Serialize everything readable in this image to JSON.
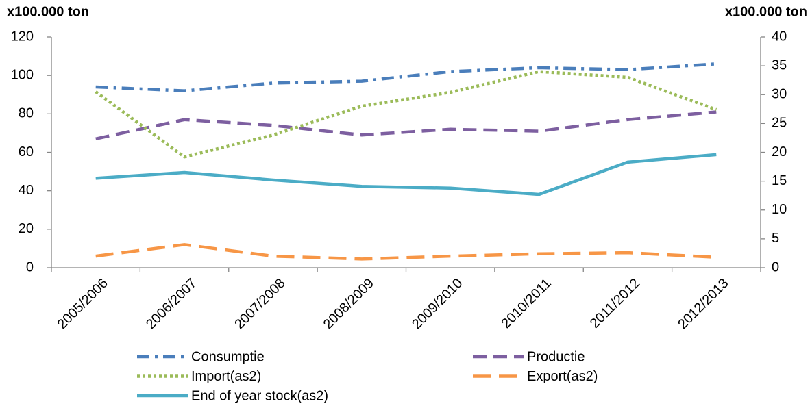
{
  "chart_data": {
    "type": "line",
    "y_label": "x100.000 ton",
    "y2_label": "x100.000 ton",
    "categories": [
      "2005/2006",
      "2006/2007",
      "2007/2008",
      "2008/2009",
      "2009/2010",
      "2010/2011",
      "2011/2012",
      "2012/2013"
    ],
    "ylim": [
      0,
      120
    ],
    "yticks": [
      0,
      20,
      40,
      60,
      80,
      100,
      120
    ],
    "y2lim": [
      0,
      40
    ],
    "y2ticks": [
      0,
      5,
      10,
      15,
      20,
      25,
      30,
      35,
      40
    ],
    "grid": false,
    "series": [
      {
        "name": "Consumptie",
        "color": "#4a7ebb",
        "dash": "dashdot",
        "values": [
          94,
          92,
          96,
          97,
          102,
          104,
          103,
          106
        ]
      },
      {
        "name": "Productie",
        "color": "#7d5fa0",
        "dash": "dash",
        "values": [
          67,
          77,
          74,
          69,
          72,
          71,
          77,
          81
        ]
      },
      {
        "name": "Import(as2)",
        "color": "#9bbb59",
        "dash": "dot",
        "axis": "y2",
        "values": [
          30.5,
          19.2,
          23,
          28,
          30.4,
          34,
          33,
          27.4
        ]
      },
      {
        "name": "Export(as2)",
        "color": "#f79646",
        "dash": "longdash",
        "axis": "y2",
        "values": [
          2,
          4,
          2,
          1.5,
          2,
          2.4,
          2.6,
          1.8
        ]
      },
      {
        "name": "End of year stock(as2)",
        "color": "#4bacc6",
        "dash": "solid",
        "axis": "y2",
        "values": [
          15.5,
          16.5,
          15.2,
          14.1,
          13.8,
          12.7,
          18.3,
          19.6
        ]
      }
    ]
  }
}
